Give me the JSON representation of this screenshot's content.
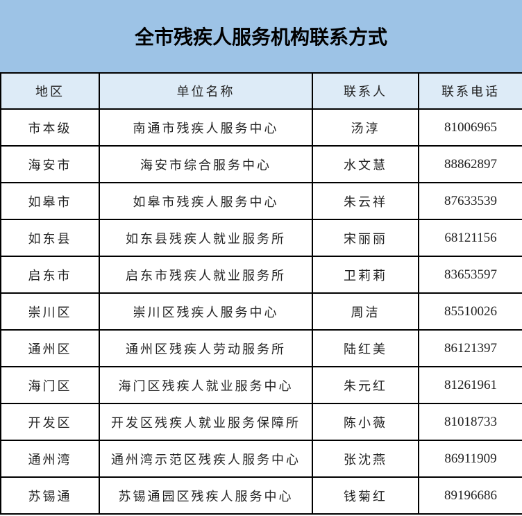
{
  "title": "全市残疾人服务机构联系方式",
  "colors": {
    "title_bg": "#9dc3e6",
    "header_bg": "#ddebf7"
  },
  "columns": [
    "地区",
    "单位名称",
    "联系人",
    "联系电话"
  ],
  "rows": [
    [
      "市本级",
      "南通市残疾人服务中心",
      "汤淳",
      "81006965"
    ],
    [
      "海安市",
      "海安市综合服务中心",
      "水文慧",
      "88862897"
    ],
    [
      "如皋市",
      "如皋市残疾人服务中心",
      "朱云祥",
      "87633539"
    ],
    [
      "如东县",
      "如东县残疾人就业服务所",
      "宋丽丽",
      "68121156"
    ],
    [
      "启东市",
      "启东市残疾人就业服务所",
      "卫莉莉",
      "83653597"
    ],
    [
      "崇川区",
      "崇川区残疾人服务中心",
      "周洁",
      "85510026"
    ],
    [
      "通州区",
      "通州区残疾人劳动服务所",
      "陆红美",
      "86121397"
    ],
    [
      "海门区",
      "海门区残疾人就业服务中心",
      "朱元红",
      "81261961"
    ],
    [
      "开发区",
      "开发区残疾人就业服务保障所",
      "陈小薇",
      "81018733"
    ],
    [
      "通州湾",
      "通州湾示范区残疾人服务中心",
      "张沈燕",
      "86911909"
    ],
    [
      "苏锡通",
      "苏锡通园区残疾人服务中心",
      "钱菊红",
      "89196686"
    ]
  ]
}
